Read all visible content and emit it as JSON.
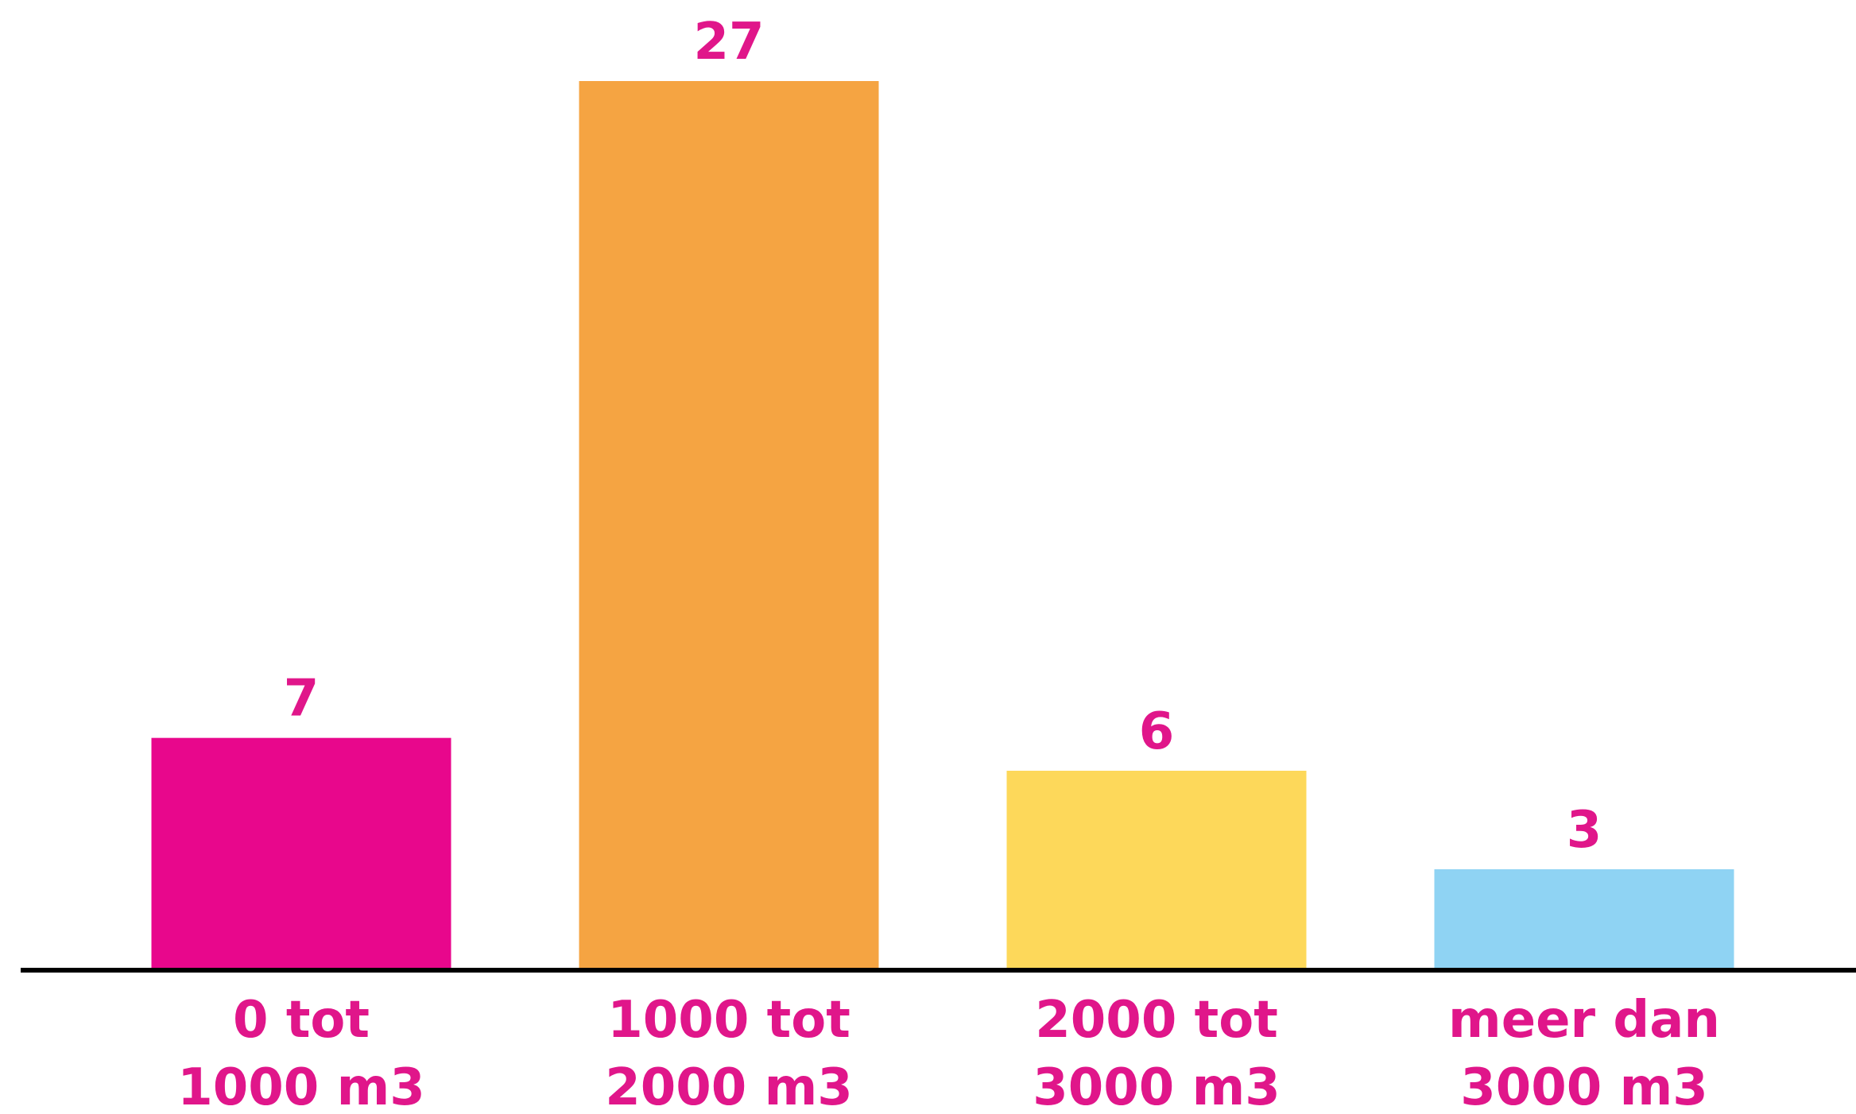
{
  "chart_data": {
    "type": "bar",
    "categories": [
      [
        "0 tot",
        "1000 m3"
      ],
      [
        "1000 tot",
        "2000 m3"
      ],
      [
        "2000 tot",
        "3000 m3"
      ],
      [
        "meer dan",
        "3000 m3"
      ]
    ],
    "values": [
      7,
      27,
      6,
      3
    ],
    "bar_colors": [
      "#e8078c",
      "#f5a442",
      "#fdd85a",
      "#8fd3f3"
    ],
    "label_color": "#e0168a",
    "axis_color": "#000000",
    "title": "",
    "xlabel": "",
    "ylabel": "",
    "ylim": [
      0,
      27
    ],
    "grid": false,
    "legend": "none"
  }
}
